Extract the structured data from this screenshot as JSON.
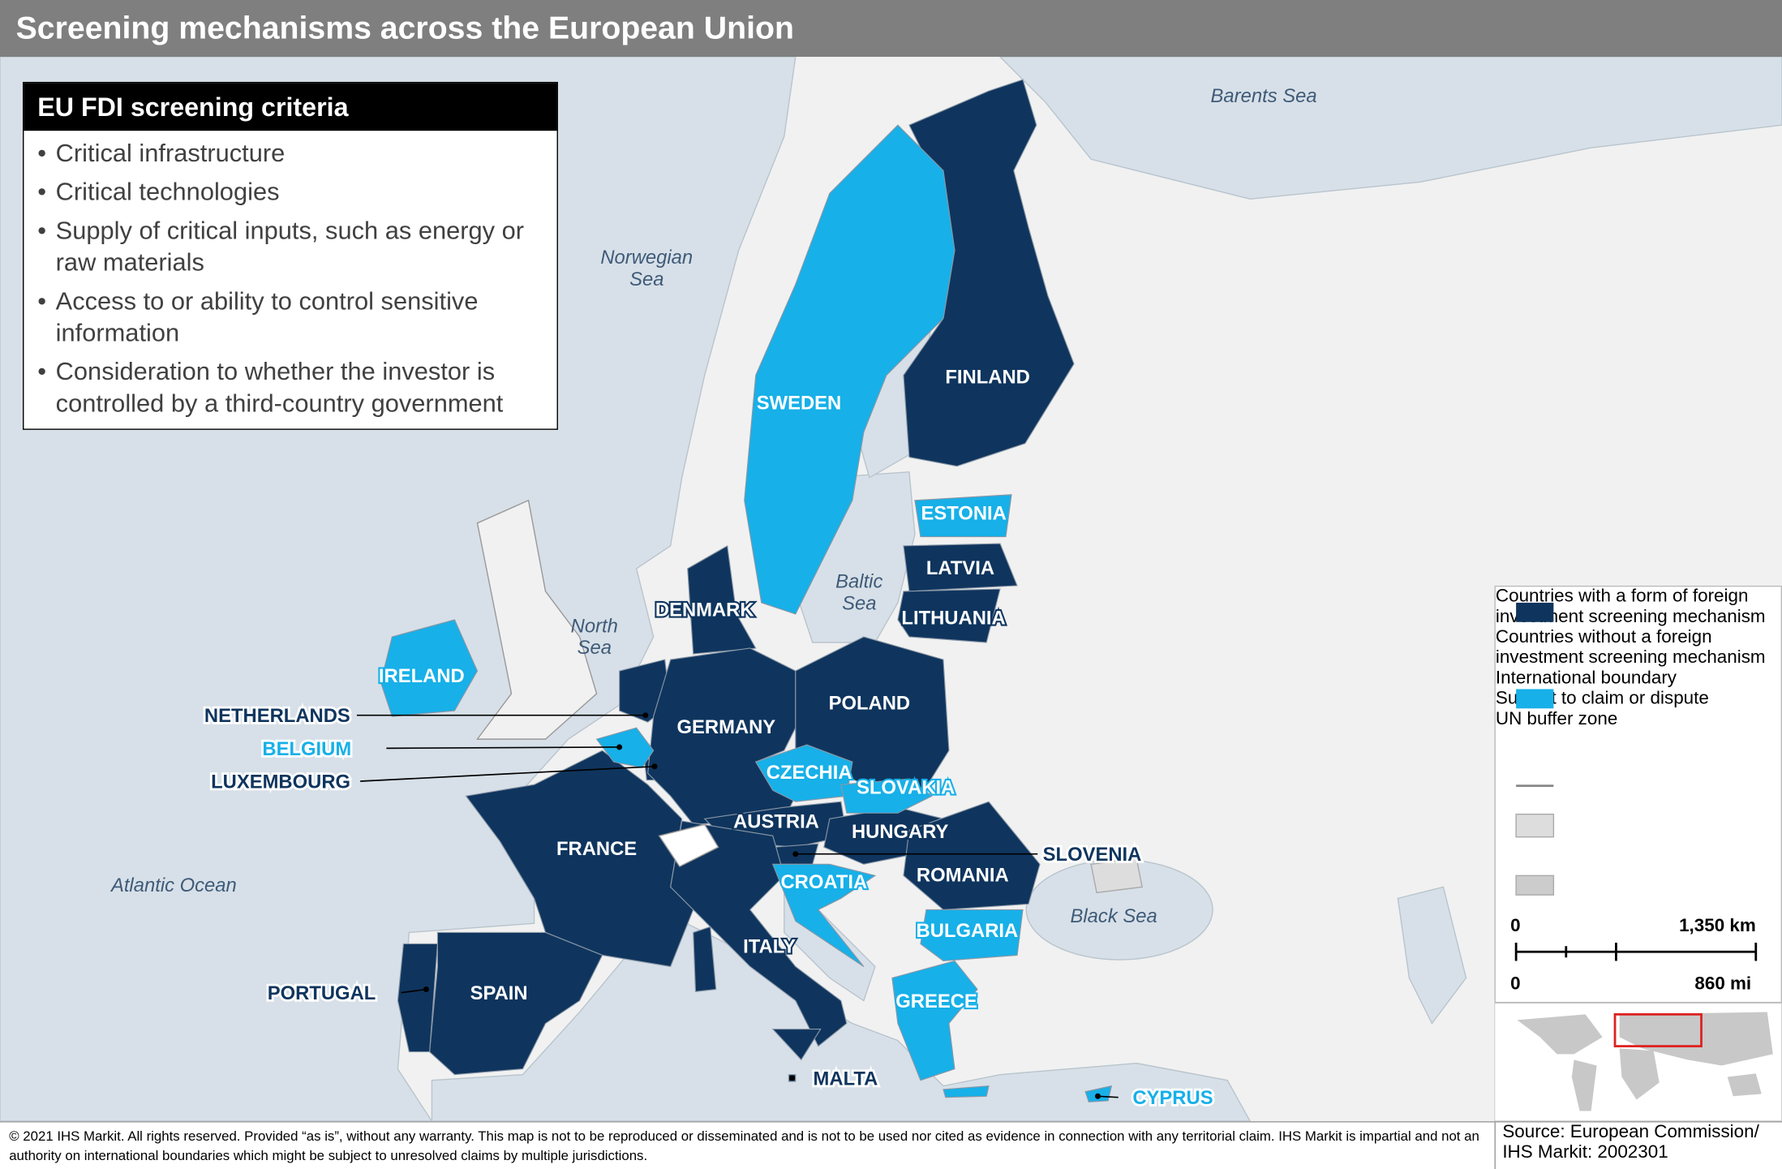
{
  "title": "Screening mechanisms across the European Union",
  "criteria": {
    "title": "EU FDI screening criteria",
    "items": [
      "Critical infrastructure",
      "Critical technologies",
      "Supply of critical inputs, such as energy or raw materials",
      "Access to or ability to control sensitive information",
      "Consideration to whether the investor is controlled by a third-country government"
    ]
  },
  "seas": [
    {
      "lines": [
        "Barents Sea"
      ]
    },
    {
      "lines": [
        "Norwegian",
        "Sea"
      ]
    },
    {
      "lines": [
        "North",
        "Sea"
      ]
    },
    {
      "lines": [
        "Baltic",
        "Sea"
      ]
    },
    {
      "lines": [
        "Atlantic Ocean"
      ]
    },
    {
      "lines": [
        "Black Sea"
      ]
    }
  ],
  "countries_with_screening": [
    "FINLAND",
    "LATVIA",
    "LITHUANIA",
    "DENMARK",
    "NETHERLANDS",
    "LUXEMBOURG",
    "GERMANY",
    "POLAND",
    "FRANCE",
    "AUSTRIA",
    "HUNGARY",
    "SLOVENIA",
    "ROMANIA",
    "ITALY",
    "SPAIN",
    "PORTUGAL",
    "MALTA"
  ],
  "countries_without_screening": [
    "SWEDEN",
    "ESTONIA",
    "IRELAND",
    "BELGIUM",
    "CZECHIA",
    "SLOVAKIA",
    "CROATIA",
    "BULGARIA",
    "GREECE",
    "CYPRUS"
  ],
  "legend": [
    "Countries with a form of foreign investment screening mechanism",
    "Countries without a foreign investment screening mechanism",
    "International boundary",
    "Subject to claim or dispute",
    "UN buffer zone"
  ],
  "scale": {
    "km_start": "0",
    "km_end": "1,350 km",
    "mi_start": "0",
    "mi_end": "860 mi"
  },
  "footer": {
    "copyright": "© 2021 IHS Markit. All rights reserved. Provided “as is”, without any warranty. This map is not to be reproduced or disseminated and is not to be used nor cited as evidence in connection with any territorial claim. IHS Markit is impartial and not an authority on international boundaries which might be subject to unresolved claims by multiple jurisdictions.",
    "source": [
      "Source: European Commission/",
      "IHS Markit: 2002301"
    ]
  }
}
